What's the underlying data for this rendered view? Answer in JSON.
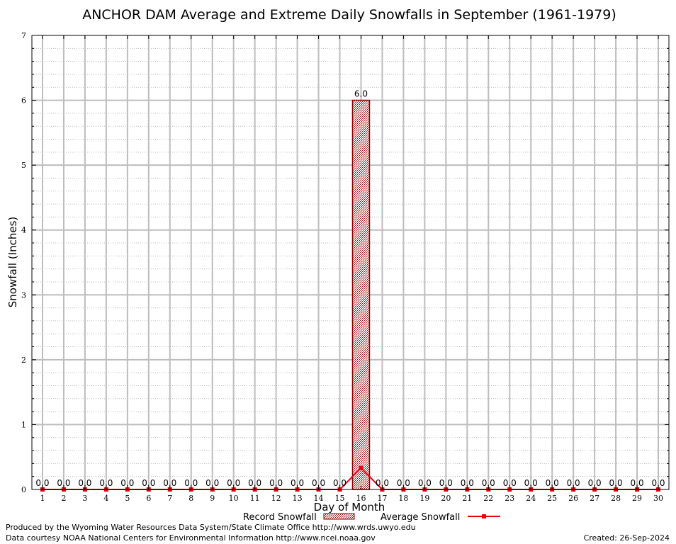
{
  "chart_data": {
    "type": "bar",
    "title": "ANCHOR DAM Average and Extreme Daily Snowfalls in September (1961-1979)",
    "xlabel": "Day of Month",
    "ylabel": "Snowfall (Inches)",
    "ylim": [
      0,
      7
    ],
    "yticks": [
      "0",
      "1",
      "2",
      "3",
      "4",
      "5",
      "6",
      "7"
    ],
    "categories": [
      "1",
      "2",
      "3",
      "4",
      "5",
      "6",
      "7",
      "8",
      "9",
      "10",
      "11",
      "12",
      "13",
      "14",
      "15",
      "16",
      "17",
      "18",
      "19",
      "20",
      "21",
      "22",
      "23",
      "24",
      "25",
      "26",
      "27",
      "28",
      "29",
      "30"
    ],
    "grid": true,
    "legend_position": "bottom",
    "series": [
      {
        "name": "Record Snowfall",
        "kind": "bar",
        "color": "#8b0000",
        "values": [
          0,
          0,
          0,
          0,
          0,
          0,
          0,
          0,
          0,
          0,
          0,
          0,
          0,
          0,
          0,
          6.0,
          0,
          0,
          0,
          0,
          0,
          0,
          0,
          0,
          0,
          0,
          0,
          0,
          0,
          0
        ],
        "labels": [
          "0.0",
          "0.0",
          "0.0",
          "0.0",
          "0.0",
          "0.0",
          "0.0",
          "0.0",
          "0.0",
          "0.0",
          "0.0",
          "0.0",
          "0.0",
          "0.0",
          "0.0",
          "6.0",
          "0.0",
          "0.0",
          "0.0",
          "0.0",
          "0.0",
          "0.0",
          "0.0",
          "0.0",
          "0.0",
          "0.0",
          "0.0",
          "0.0",
          "0.0",
          "0.0"
        ]
      },
      {
        "name": "Average Snowfall",
        "kind": "line",
        "color": "#e8000b",
        "values": [
          0,
          0,
          0,
          0,
          0,
          0,
          0,
          0,
          0,
          0,
          0,
          0,
          0,
          0,
          0,
          0.33,
          0,
          0,
          0,
          0,
          0,
          0,
          0,
          0,
          0,
          0,
          0,
          0,
          0,
          0
        ]
      }
    ]
  },
  "footer": {
    "line1": "Produced by the Wyoming Water Resources Data System/State Climate Office http://www.wrds.uwyo.edu",
    "line2": "Data courtesy NOAA National Centers for Environmental Information http://www.ncei.noaa.gov",
    "created": "Created:  26-Sep-2024"
  }
}
